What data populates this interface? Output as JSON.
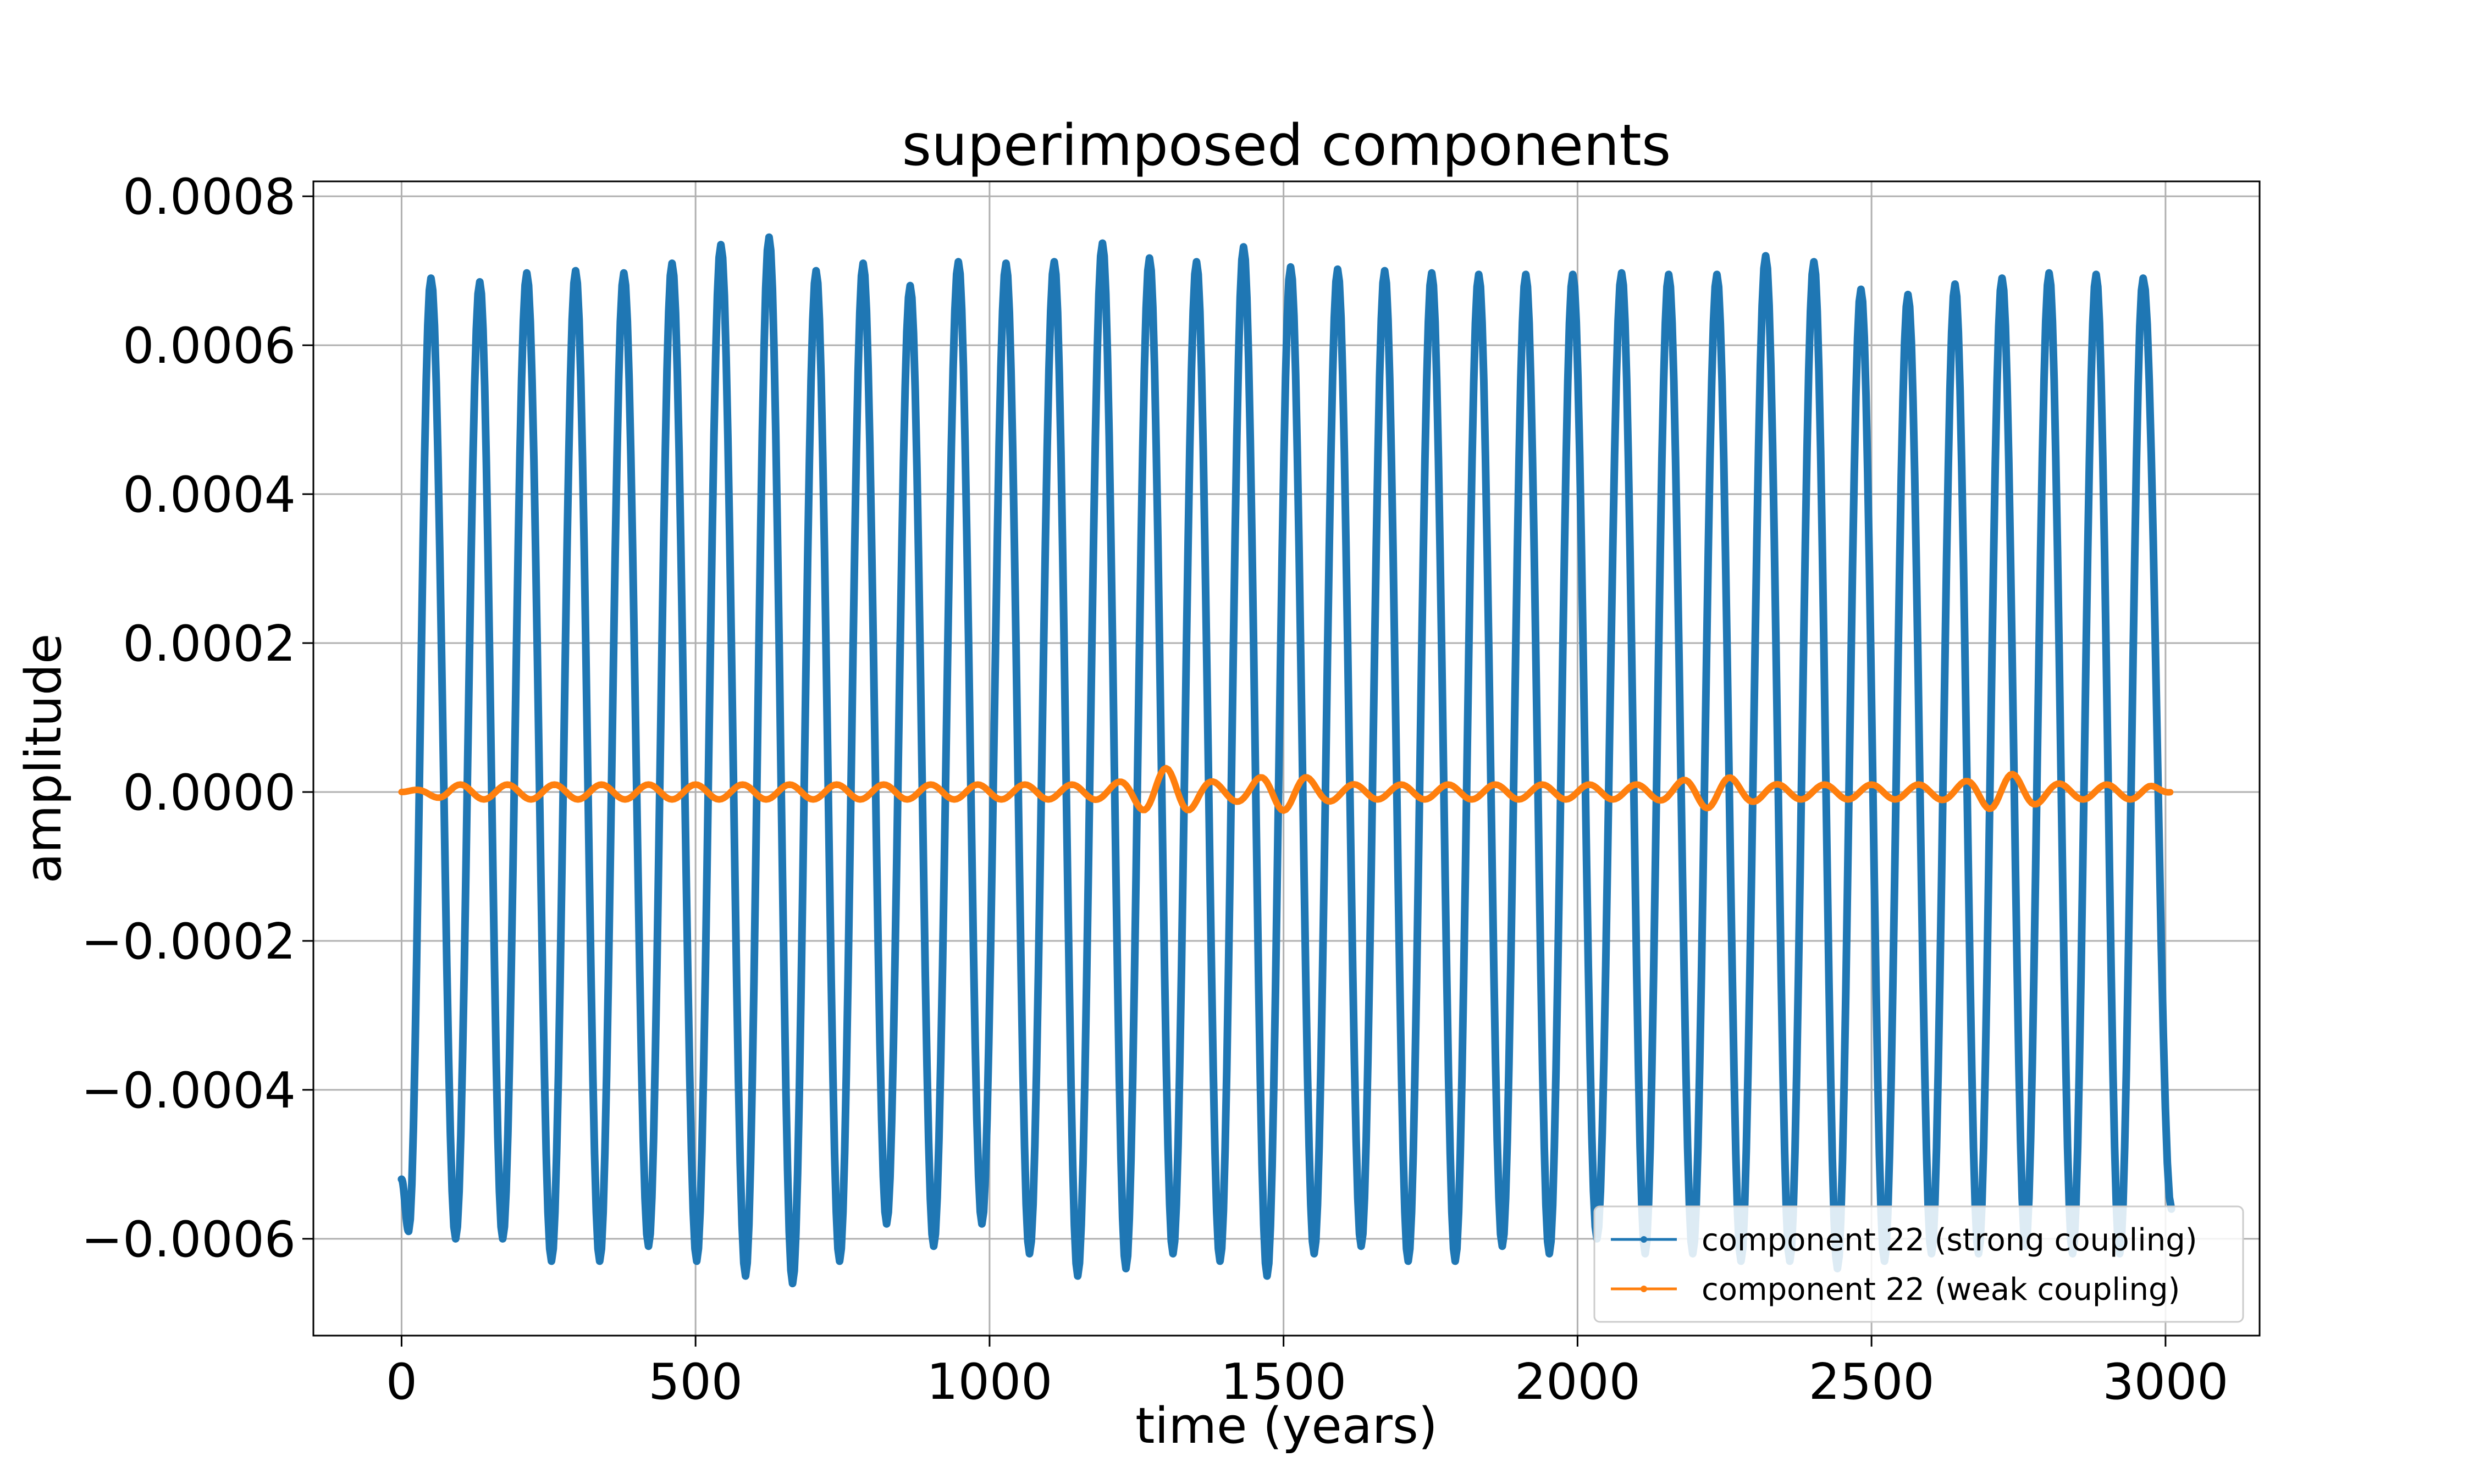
{
  "chart_data": {
    "type": "line",
    "title": "superimposed components",
    "xlabel": "time (years)",
    "ylabel": "amplitude",
    "xlim": [
      -150,
      3160
    ],
    "ylim": [
      -0.00073,
      0.00082
    ],
    "grid": true,
    "legend_position": "lower right",
    "x_ticks": [
      0,
      500,
      1000,
      1500,
      2000,
      2500,
      3000
    ],
    "x_tick_labels": [
      "0",
      "500",
      "1000",
      "1500",
      "2000",
      "2500",
      "3000"
    ],
    "y_ticks": [
      -0.0006,
      -0.0004,
      -0.0002,
      0.0,
      0.0002,
      0.0004,
      0.0006,
      0.0008
    ],
    "y_tick_labels": [
      "−0.0006",
      "−0.0004",
      "−0.0002",
      "0.0000",
      "0.0002",
      "0.0004",
      "0.0006",
      "0.0008"
    ],
    "series": [
      {
        "name": "component 22 (strong coupling)",
        "color": "#1f77b4",
        "start": [
          0,
          -0.00052
        ],
        "end": [
          3010,
          -0.00056
        ],
        "peaks": [
          [
            50,
            0.00069
          ],
          [
            133,
            0.000685
          ],
          [
            213,
            0.000697
          ],
          [
            296,
            0.0007
          ],
          [
            378,
            0.000697
          ],
          [
            460,
            0.00071
          ],
          [
            543,
            0.000735
          ],
          [
            625,
            0.000745
          ],
          [
            705,
            0.0007
          ],
          [
            785,
            0.00071
          ],
          [
            865,
            0.00068
          ],
          [
            947,
            0.000712
          ],
          [
            1028,
            0.00071
          ],
          [
            1110,
            0.000712
          ],
          [
            1192,
            0.000737
          ],
          [
            1272,
            0.000717
          ],
          [
            1352,
            0.000712
          ],
          [
            1432,
            0.000732
          ],
          [
            1512,
            0.000705
          ],
          [
            1592,
            0.000702
          ],
          [
            1672,
            0.0007
          ],
          [
            1752,
            0.000697
          ],
          [
            1832,
            0.000695
          ],
          [
            1912,
            0.000695
          ],
          [
            1992,
            0.000695
          ],
          [
            2075,
            0.000697
          ],
          [
            2155,
            0.000695
          ],
          [
            2237,
            0.000695
          ],
          [
            2320,
            0.00072
          ],
          [
            2402,
            0.000712
          ],
          [
            2482,
            0.000675
          ],
          [
            2562,
            0.000668
          ],
          [
            2642,
            0.000682
          ],
          [
            2722,
            0.00069
          ],
          [
            2802,
            0.000697
          ],
          [
            2882,
            0.000695
          ],
          [
            2962,
            0.00069
          ]
        ],
        "troughs": [
          [
            12,
            -0.00059
          ],
          [
            92,
            -0.0006
          ],
          [
            172,
            -0.0006
          ],
          [
            255,
            -0.00063
          ],
          [
            337,
            -0.00063
          ],
          [
            420,
            -0.00061
          ],
          [
            502,
            -0.00063
          ],
          [
            585,
            -0.00065
          ],
          [
            665,
            -0.00066
          ],
          [
            745,
            -0.00063
          ],
          [
            825,
            -0.00058
          ],
          [
            905,
            -0.00061
          ],
          [
            987,
            -0.00058
          ],
          [
            1068,
            -0.00062
          ],
          [
            1150,
            -0.00065
          ],
          [
            1232,
            -0.00064
          ],
          [
            1312,
            -0.00062
          ],
          [
            1392,
            -0.00063
          ],
          [
            1472,
            -0.00065
          ],
          [
            1552,
            -0.00062
          ],
          [
            1632,
            -0.00061
          ],
          [
            1712,
            -0.00063
          ],
          [
            1792,
            -0.00063
          ],
          [
            1872,
            -0.00061
          ],
          [
            1952,
            -0.00062
          ],
          [
            2033,
            -0.0006
          ],
          [
            2115,
            -0.00062
          ],
          [
            2196,
            -0.00062
          ],
          [
            2278,
            -0.00063
          ],
          [
            2361,
            -0.00063
          ],
          [
            2442,
            -0.00064
          ],
          [
            2522,
            -0.00063
          ],
          [
            2602,
            -0.00062
          ],
          [
            2682,
            -0.00062
          ],
          [
            2762,
            -0.00061
          ],
          [
            2842,
            -0.00062
          ],
          [
            2922,
            -0.00062
          ]
        ]
      },
      {
        "name": "component 22 (weak coupling)",
        "color": "#ff7f0e",
        "start": [
          0,
          0.0
        ],
        "end": [
          3010,
          0.0
        ],
        "oscillation_amplitude": 1e-05,
        "oscillation_period": 80,
        "local_bursts": [
          [
            1300,
            2.2e-05
          ],
          [
            1500,
            1.5e-05
          ],
          [
            2230,
            1.2e-05
          ],
          [
            2725,
            1.5e-05
          ]
        ]
      }
    ]
  }
}
